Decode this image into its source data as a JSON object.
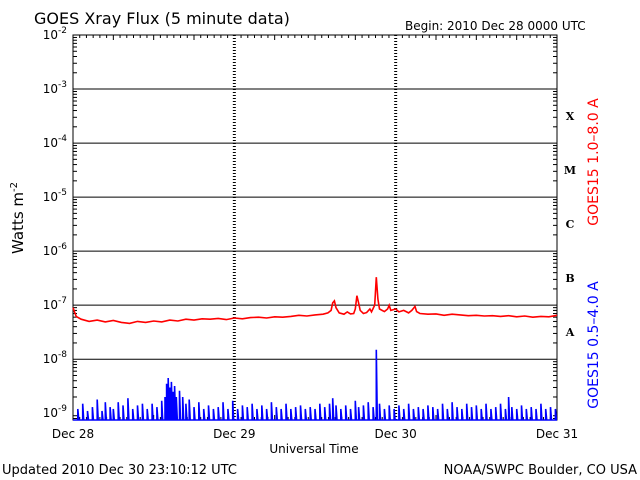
{
  "chart_data": {
    "type": "line",
    "title": "GOES Xray Flux (5 minute data)",
    "begin_label": "Begin:  2010 Dec 28 0000 UTC",
    "xlabel": "Universal Time",
    "ylabel": "Watts m",
    "ylabel_superscript": "-2",
    "x_tick_labels": [
      "Dec 28",
      "Dec 29",
      "Dec 30",
      "Dec 31"
    ],
    "x_range_days": [
      0,
      3
    ],
    "y_scale": "log",
    "y_range": [
      7.5e-10,
      0.01
    ],
    "y_tick_labels": [
      {
        "value": 0.01,
        "base": "10",
        "exp": "-2"
      },
      {
        "value": 0.001,
        "base": "10",
        "exp": "-3"
      },
      {
        "value": 0.0001,
        "base": "10",
        "exp": "-4"
      },
      {
        "value": 1e-05,
        "base": "10",
        "exp": "-5"
      },
      {
        "value": 1e-06,
        "base": "10",
        "exp": "-6"
      },
      {
        "value": 1e-07,
        "base": "10",
        "exp": "-7"
      },
      {
        "value": 1e-08,
        "base": "10",
        "exp": "-8"
      },
      {
        "value": 1e-09,
        "base": "10",
        "exp": "-9"
      }
    ],
    "flare_classes": [
      {
        "label": "X",
        "value": 0.00032
      },
      {
        "label": "M",
        "value": 3.2e-05
      },
      {
        "label": "C",
        "value": 3.2e-06
      },
      {
        "label": "B",
        "value": 3.2e-07
      },
      {
        "label": "A",
        "value": 3.2e-08
      }
    ],
    "series": [
      {
        "name": "GOES15 1.0–8.0 A",
        "color": "#ff0000",
        "points": [
          [
            0.0,
            9e-08
          ],
          [
            0.02,
            6.2e-08
          ],
          [
            0.05,
            5.5e-08
          ],
          [
            0.1,
            5e-08
          ],
          [
            0.15,
            5.3e-08
          ],
          [
            0.2,
            4.9e-08
          ],
          [
            0.25,
            5.2e-08
          ],
          [
            0.3,
            4.8e-08
          ],
          [
            0.35,
            4.6e-08
          ],
          [
            0.4,
            5e-08
          ],
          [
            0.45,
            4.8e-08
          ],
          [
            0.5,
            5.1e-08
          ],
          [
            0.55,
            4.9e-08
          ],
          [
            0.6,
            5.3e-08
          ],
          [
            0.65,
            5.1e-08
          ],
          [
            0.7,
            5.5e-08
          ],
          [
            0.75,
            5.3e-08
          ],
          [
            0.8,
            5.6e-08
          ],
          [
            0.85,
            5.5e-08
          ],
          [
            0.9,
            5.7e-08
          ],
          [
            0.95,
            5.4e-08
          ],
          [
            1.0,
            5.8e-08
          ],
          [
            1.05,
            5.6e-08
          ],
          [
            1.1,
            5.9e-08
          ],
          [
            1.15,
            6e-08
          ],
          [
            1.2,
            5.8e-08
          ],
          [
            1.25,
            6.1e-08
          ],
          [
            1.3,
            6e-08
          ],
          [
            1.35,
            6.2e-08
          ],
          [
            1.4,
            6.5e-08
          ],
          [
            1.45,
            6.3e-08
          ],
          [
            1.5,
            6.6e-08
          ],
          [
            1.55,
            6.8e-08
          ],
          [
            1.58,
            7.2e-08
          ],
          [
            1.6,
            8e-08
          ],
          [
            1.61,
            1.1e-07
          ],
          [
            1.62,
            1.2e-07
          ],
          [
            1.63,
            9e-08
          ],
          [
            1.65,
            7.2e-08
          ],
          [
            1.68,
            6.8e-08
          ],
          [
            1.7,
            7.5e-08
          ],
          [
            1.72,
            6.9e-08
          ],
          [
            1.74,
            7e-08
          ],
          [
            1.75,
            8.5e-08
          ],
          [
            1.76,
            1.5e-07
          ],
          [
            1.77,
            1.1e-07
          ],
          [
            1.78,
            8e-08
          ],
          [
            1.8,
            7e-08
          ],
          [
            1.82,
            7.3e-08
          ],
          [
            1.84,
            8.5e-08
          ],
          [
            1.85,
            7.5e-08
          ],
          [
            1.87,
            1e-07
          ],
          [
            1.88,
            3.3e-07
          ],
          [
            1.89,
            1.3e-07
          ],
          [
            1.9,
            8.5e-08
          ],
          [
            1.93,
            7.6e-08
          ],
          [
            1.95,
            8.5e-08
          ],
          [
            1.96,
            1e-07
          ],
          [
            1.97,
            8e-08
          ],
          [
            2.0,
            8.5e-08
          ],
          [
            2.02,
            7.5e-08
          ],
          [
            2.05,
            8e-08
          ],
          [
            2.08,
            7.2e-08
          ],
          [
            2.1,
            8e-08
          ],
          [
            2.12,
            9.5e-08
          ],
          [
            2.13,
            7.6e-08
          ],
          [
            2.15,
            7e-08
          ],
          [
            2.2,
            6.8e-08
          ],
          [
            2.25,
            6.9e-08
          ],
          [
            2.3,
            6.5e-08
          ],
          [
            2.35,
            6.8e-08
          ],
          [
            2.4,
            6.6e-08
          ],
          [
            2.45,
            6.4e-08
          ],
          [
            2.5,
            6.5e-08
          ],
          [
            2.55,
            6.3e-08
          ],
          [
            2.6,
            6.4e-08
          ],
          [
            2.65,
            6.2e-08
          ],
          [
            2.7,
            6.4e-08
          ],
          [
            2.75,
            6.1e-08
          ],
          [
            2.8,
            6.3e-08
          ],
          [
            2.85,
            6e-08
          ],
          [
            2.9,
            6.2e-08
          ],
          [
            2.95,
            6.1e-08
          ],
          [
            3.0,
            6.5e-08
          ]
        ]
      },
      {
        "name": "GOES15 0.5–4.0 A",
        "color": "#0000ff",
        "baseline": 7.5e-10,
        "spikes": [
          [
            0.03,
            1.2e-09
          ],
          [
            0.06,
            1.5e-09
          ],
          [
            0.09,
            1.1e-09
          ],
          [
            0.12,
            1.3e-09
          ],
          [
            0.15,
            1.8e-09
          ],
          [
            0.18,
            1.1e-09
          ],
          [
            0.2,
            1.6e-09
          ],
          [
            0.23,
            1.3e-09
          ],
          [
            0.25,
            1.2e-09
          ],
          [
            0.28,
            1.6e-09
          ],
          [
            0.31,
            1.4e-09
          ],
          [
            0.34,
            1.9e-09
          ],
          [
            0.37,
            1.2e-09
          ],
          [
            0.4,
            1.4e-09
          ],
          [
            0.43,
            1.5e-09
          ],
          [
            0.46,
            1.2e-09
          ],
          [
            0.49,
            1.5e-09
          ],
          [
            0.52,
            1.3e-09
          ],
          [
            0.55,
            1.7e-09
          ],
          [
            0.57,
            2e-09
          ],
          [
            0.58,
            3.5e-09
          ],
          [
            0.59,
            4.5e-09
          ],
          [
            0.6,
            3e-09
          ],
          [
            0.61,
            3.8e-09
          ],
          [
            0.62,
            2.5e-09
          ],
          [
            0.63,
            3.2e-09
          ],
          [
            0.64,
            2e-09
          ],
          [
            0.66,
            2.6e-09
          ],
          [
            0.68,
            2e-09
          ],
          [
            0.7,
            1.5e-09
          ],
          [
            0.72,
            1.8e-09
          ],
          [
            0.75,
            1.3e-09
          ],
          [
            0.78,
            1.6e-09
          ],
          [
            0.81,
            1.2e-09
          ],
          [
            0.84,
            1.4e-09
          ],
          [
            0.87,
            1.2e-09
          ],
          [
            0.9,
            1.3e-09
          ],
          [
            0.93,
            1.6e-09
          ],
          [
            0.96,
            1.2e-09
          ],
          [
            0.99,
            1.7e-09
          ],
          [
            1.02,
            1.2e-09
          ],
          [
            1.05,
            1.4e-09
          ],
          [
            1.08,
            1.3e-09
          ],
          [
            1.11,
            1.5e-09
          ],
          [
            1.14,
            1.2e-09
          ],
          [
            1.17,
            1.4e-09
          ],
          [
            1.2,
            1.2e-09
          ],
          [
            1.23,
            1.6e-09
          ],
          [
            1.26,
            1.3e-09
          ],
          [
            1.29,
            1.2e-09
          ],
          [
            1.32,
            1.5e-09
          ],
          [
            1.35,
            1.2e-09
          ],
          [
            1.38,
            1.3e-09
          ],
          [
            1.41,
            1.4e-09
          ],
          [
            1.44,
            1.2e-09
          ],
          [
            1.47,
            1.3e-09
          ],
          [
            1.5,
            1.2e-09
          ],
          [
            1.53,
            1.5e-09
          ],
          [
            1.56,
            1.3e-09
          ],
          [
            1.59,
            1.5e-09
          ],
          [
            1.61,
            1.9e-09
          ],
          [
            1.63,
            1.4e-09
          ],
          [
            1.66,
            1.2e-09
          ],
          [
            1.69,
            1.4e-09
          ],
          [
            1.72,
            1.2e-09
          ],
          [
            1.75,
            1.7e-09
          ],
          [
            1.77,
            1.3e-09
          ],
          [
            1.8,
            1.4e-09
          ],
          [
            1.83,
            1.6e-09
          ],
          [
            1.86,
            1.3e-09
          ],
          [
            1.88,
            1.5e-08
          ],
          [
            1.9,
            1.5e-09
          ],
          [
            1.93,
            1.2e-09
          ],
          [
            1.96,
            1.4e-09
          ],
          [
            1.99,
            1.2e-09
          ],
          [
            2.02,
            1.4e-09
          ],
          [
            2.05,
            1.2e-09
          ],
          [
            2.08,
            1.5e-09
          ],
          [
            2.11,
            1.2e-09
          ],
          [
            2.14,
            1.3e-09
          ],
          [
            2.17,
            1.2e-09
          ],
          [
            2.2,
            1.4e-09
          ],
          [
            2.23,
            1.3e-09
          ],
          [
            2.26,
            1.2e-09
          ],
          [
            2.29,
            1.5e-09
          ],
          [
            2.32,
            1.2e-09
          ],
          [
            2.35,
            1.6e-09
          ],
          [
            2.38,
            1.3e-09
          ],
          [
            2.41,
            1.2e-09
          ],
          [
            2.44,
            1.5e-09
          ],
          [
            2.47,
            1.3e-09
          ],
          [
            2.5,
            1.4e-09
          ],
          [
            2.53,
            1.2e-09
          ],
          [
            2.56,
            1.5e-09
          ],
          [
            2.59,
            1.2e-09
          ],
          [
            2.62,
            1.3e-09
          ],
          [
            2.65,
            1.5e-09
          ],
          [
            2.68,
            1.2e-09
          ],
          [
            2.7,
            2e-09
          ],
          [
            2.72,
            1.3e-09
          ],
          [
            2.75,
            1.2e-09
          ],
          [
            2.78,
            1.4e-09
          ],
          [
            2.81,
            1.2e-09
          ],
          [
            2.84,
            1.3e-09
          ],
          [
            2.87,
            1.2e-09
          ],
          [
            2.9,
            1.5e-09
          ],
          [
            2.93,
            1.2e-09
          ],
          [
            2.96,
            1.3e-09
          ],
          [
            2.99,
            1.2e-09
          ]
        ]
      }
    ]
  },
  "footer": {
    "updated": "Updated 2010 Dec 30 23:10:12 UTC",
    "credit": "NOAA/SWPC Boulder, CO USA"
  }
}
